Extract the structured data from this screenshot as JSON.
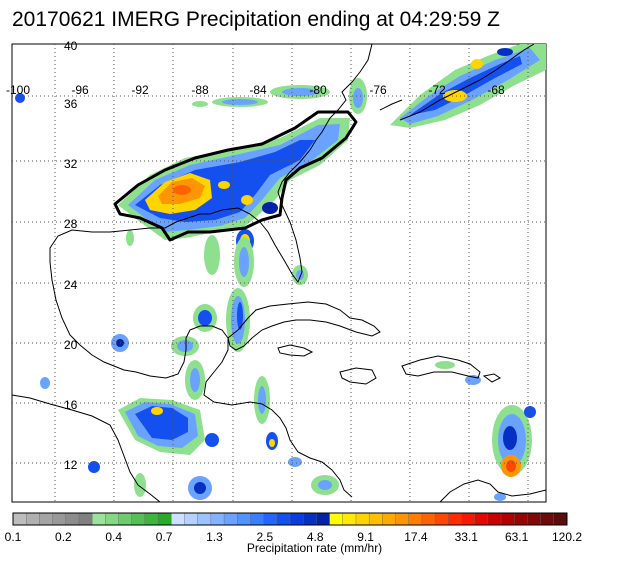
{
  "title": "20170621 IMERG Precipitation ending at 04:29:59 Z",
  "map": {
    "lon_labels": [
      "-100",
      "-96",
      "-92",
      "-88",
      "-84",
      "-80",
      "-76",
      "-72",
      "-68"
    ],
    "lat_labels": [
      "40",
      "36",
      "32",
      "28",
      "24",
      "20",
      "16",
      "12"
    ]
  },
  "colorbar": {
    "label": "Precipitation rate (mm/hr)",
    "ticks": [
      "0.1",
      "0.2",
      "0.4",
      "0.7",
      "1.3",
      "2.5",
      "4.8",
      "9.1",
      "17.4",
      "33.1",
      "63.1",
      "120.2"
    ],
    "colors": [
      "#bdbdbd",
      "#b0b0b0",
      "#a4a4a4",
      "#989898",
      "#8c8c8c",
      "#808080",
      "#9be39b",
      "#84d884",
      "#6dcc6d",
      "#56c056",
      "#3fb43f",
      "#29a829",
      "#cde0ff",
      "#b5d2ff",
      "#9cc3ff",
      "#83b3ff",
      "#6aa3ff",
      "#5293ff",
      "#3a7dff",
      "#2465ff",
      "#1450ef",
      "#0a3ddc",
      "#0630c4",
      "#0222a8",
      "#ffff00",
      "#ffea00",
      "#ffd500",
      "#ffc000",
      "#ffaa00",
      "#ff9500",
      "#ff7d00",
      "#ff6200",
      "#ff4700",
      "#ff2c00",
      "#f51900",
      "#e00a00",
      "#c80000",
      "#b00000",
      "#980404",
      "#800808",
      "#6d0a0a",
      "#5a0c0c"
    ]
  }
}
